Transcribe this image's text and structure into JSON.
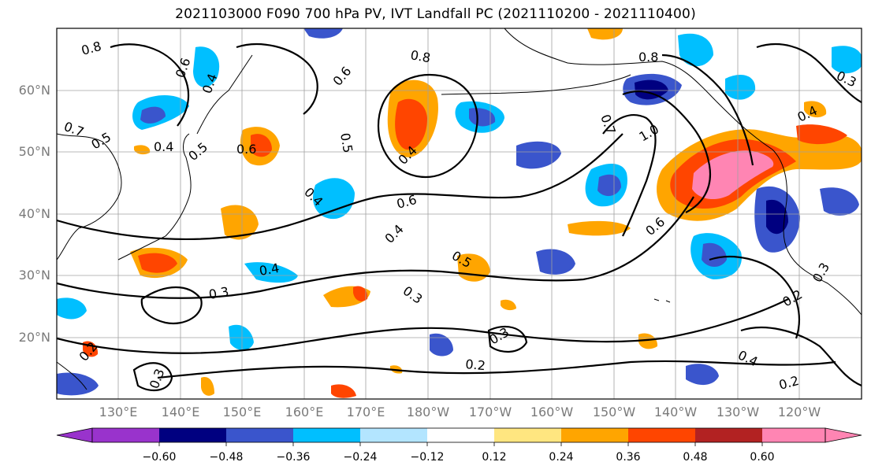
{
  "title": "2021103000 F090 700 hPa PV, IVT Landfall PC (2021110200 - 2021110400)",
  "lat_labels": [
    "60°N",
    "50°N",
    "40°N",
    "30°N",
    "20°N"
  ],
  "lon_labels": [
    "130°E",
    "140°E",
    "150°E",
    "160°E",
    "170°E",
    "180°W",
    "170°W",
    "160°W",
    "150°W",
    "140°W",
    "130°W",
    "120°W"
  ],
  "colorbar": {
    "ticks": [
      "−0.60",
      "−0.48",
      "−0.36",
      "−0.24",
      "−0.12",
      "0.12",
      "0.24",
      "0.36",
      "0.48",
      "0.60"
    ],
    "colors": [
      "#9933cc",
      "#000080",
      "#3a55cc",
      "#00bfff",
      "#b3e5ff",
      "#ffffff",
      "#ffe680",
      "#ffa500",
      "#ff4500",
      "#b22222",
      "#ff85b3"
    ]
  },
  "contour_labels": [
    "0.8",
    "0.6",
    "0.4",
    "0.7",
    "0.5",
    "0.4",
    "0.6",
    "0.5",
    "0.4",
    "0.8",
    "0.6",
    "0.5",
    "0.4",
    "0.6",
    "0.4",
    "0.5",
    "0.3",
    "0.3",
    "0.4",
    "0.3",
    "0.2",
    "0.8",
    "1.0",
    "0.7",
    "0.6",
    "0.4",
    "0.3",
    "0.2",
    "0.4",
    "0.2",
    "0.3",
    "0.2",
    "0.3"
  ]
}
